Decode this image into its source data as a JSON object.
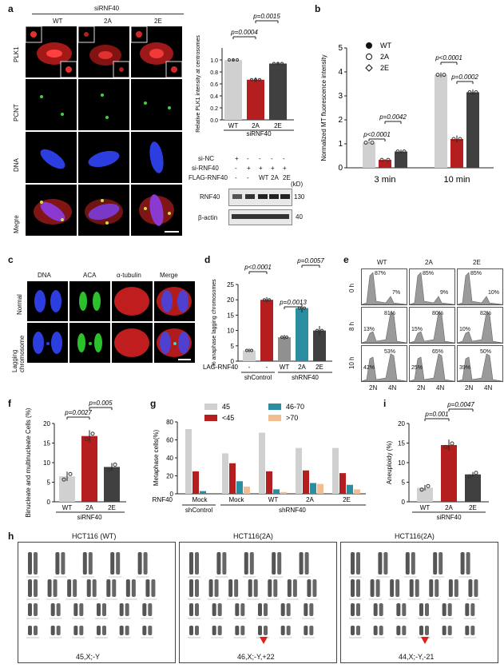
{
  "panels": {
    "a": {
      "label": "a",
      "header": "siRNF40",
      "columns": [
        "WT",
        "2A",
        "2E"
      ],
      "rows": [
        "PLK1",
        "PCNT",
        "DNA",
        "Megre"
      ],
      "chart_data": {
        "type": "bar",
        "categories": [
          "WT",
          "2A",
          "2E"
        ],
        "values": [
          1.0,
          0.67,
          0.94
        ],
        "errors": [
          0.01,
          0.04,
          0.02
        ],
        "colors": [
          "#d0d0d0",
          "#b41e1e",
          "#404040"
        ],
        "ylabel": "Relative PLK1 intensity at centrosomes",
        "ylim": [
          0,
          1.2
        ],
        "yticks": [
          "0.0",
          "0.2",
          "0.4",
          "0.6",
          "0.8",
          "1.0"
        ],
        "xgroup": "siRNF40",
        "pvalues": [
          "p=0.0004",
          "p=0.0015"
        ]
      },
      "blot": {
        "row_labels": [
          "si-NC",
          "si-RNF40",
          "FLAG-RNF40"
        ],
        "row_signs": [
          [
            "+",
            "-",
            "-",
            "-",
            "-"
          ],
          [
            "-",
            "+",
            "+",
            "+",
            "+"
          ],
          [
            "-",
            "-",
            "WT",
            "2A",
            "2E"
          ]
        ],
        "kd_label": "(kD)",
        "bands": [
          {
            "name": "RNF40",
            "kd": "130"
          },
          {
            "name": "β-actin",
            "kd": "40"
          }
        ]
      }
    },
    "b": {
      "label": "b",
      "chart_data": {
        "type": "bar",
        "categories": [
          "3 min",
          "10 min"
        ],
        "series": [
          {
            "name": "WT",
            "values": [
              1.05,
              3.88
            ],
            "errors": [
              0.02,
              0.1
            ]
          },
          {
            "name": "2A",
            "values": [
              0.33,
              1.2
            ],
            "errors": [
              0.03,
              0.15
            ]
          },
          {
            "name": "2E",
            "values": [
              0.68,
              3.15
            ],
            "errors": [
              0.08,
              0.12
            ]
          }
        ],
        "colors": [
          "#d0d0d0",
          "#b41e1e",
          "#404040"
        ],
        "ylabel": "Normalized MT fluorescence intensity",
        "ylim": [
          0,
          5
        ],
        "yticks": [
          "0",
          "1",
          "2",
          "3",
          "4",
          "5"
        ],
        "pvalues": [
          "p<0.0001",
          "p=0.0042",
          "p<0.0001",
          "p=0.0002"
        ]
      }
    },
    "c": {
      "label": "c",
      "columns": [
        "DNA",
        "ACA",
        "α-tubulin",
        "Merge"
      ],
      "rows": [
        "Normal",
        "Lagging chromosome"
      ]
    },
    "d": {
      "label": "d",
      "chart_data": {
        "type": "bar",
        "categories": [
          "-",
          "-",
          "WT",
          "2A",
          "2E"
        ],
        "values": [
          3.5,
          20.0,
          7.8,
          17.3,
          10.0
        ],
        "errors": [
          0.6,
          0.9,
          0.8,
          1.4,
          1.5
        ],
        "colors": [
          "#d0d0d0",
          "#b41e1e",
          "#909090",
          "#2a8da0",
          "#404040"
        ],
        "ylabel": "% anaphase lagging chromosomes",
        "ylim": [
          0,
          25
        ],
        "yticks": [
          "0",
          "5",
          "10",
          "15",
          "20",
          "25"
        ],
        "row_label": "FLAG-RNF40",
        "groups": [
          "shControl",
          "shRNF40"
        ],
        "pvalues": [
          "p<0.0001",
          "p=0.0013",
          "p=0.0057"
        ]
      }
    },
    "e": {
      "label": "e",
      "columns": [
        "WT",
        "2A",
        "2E"
      ],
      "rows": [
        "0 h",
        "8 h",
        "10 h"
      ],
      "percents": [
        [
          [
            "87%",
            "7%"
          ],
          [
            "85%",
            "9%"
          ],
          [
            "85%",
            "10%"
          ]
        ],
        [
          [
            "13%",
            "81%"
          ],
          [
            "15%",
            "80%"
          ],
          [
            "10%",
            "82%"
          ]
        ],
        [
          [
            "42%",
            "53%"
          ],
          [
            "25%",
            "65%"
          ],
          [
            "39%",
            "50%"
          ]
        ]
      ],
      "xlabels": [
        "2N",
        "4N"
      ]
    },
    "f": {
      "label": "f",
      "chart_data": {
        "type": "bar",
        "categories": [
          "WT",
          "2A",
          "2E"
        ],
        "values": [
          6.5,
          16.8,
          8.9
        ],
        "errors": [
          1.2,
          1.5,
          1.0
        ],
        "colors": [
          "#d0d0d0",
          "#b41e1e",
          "#404040"
        ],
        "ylabel": "Binucleate and multinucleate Cells (%)",
        "ylim": [
          0,
          20
        ],
        "yticks": [
          "0",
          "5",
          "10",
          "15",
          "20"
        ],
        "xgroup": "siRNF40",
        "pvalues": [
          "p=0.0027",
          "p=0.005"
        ]
      }
    },
    "g": {
      "label": "g",
      "chart_data": {
        "type": "bar",
        "categories": [
          "Mock",
          "Mock",
          "WT",
          "2A",
          "2E"
        ],
        "series": [
          {
            "name": "45",
            "values": [
              72,
              45,
              68,
              51,
              51
            ]
          },
          {
            "name": "<45",
            "values": [
              25,
              34,
              25,
              26,
              23
            ]
          },
          {
            "name": "46-70",
            "values": [
              3,
              14,
              5,
              12,
              10
            ]
          },
          {
            "name": ">70",
            "values": [
              0,
              8,
              2,
              11,
              5
            ]
          }
        ],
        "colors": [
          "#d0d0d0",
          "#b41e1e",
          "#2a8da0",
          "#f2bd8f"
        ],
        "ylabel": "Metaphase cells(%)",
        "ylim": [
          0,
          80
        ],
        "yticks": [
          "0",
          "20",
          "40",
          "60",
          "80"
        ],
        "row_label": "RNF40",
        "groups": [
          "shControl",
          "shRNF40"
        ]
      }
    },
    "i": {
      "label": "i",
      "chart_data": {
        "type": "bar",
        "categories": [
          "WT",
          "2A",
          "2E"
        ],
        "values": [
          3.6,
          14.5,
          7.0
        ],
        "errors": [
          0.7,
          1.4,
          0.6
        ],
        "colors": [
          "#d0d0d0",
          "#b41e1e",
          "#404040"
        ],
        "ylabel": "Aneuploidy (%)",
        "ylim": [
          0,
          20
        ],
        "yticks": [
          "0",
          "5",
          "10",
          "15",
          "20"
        ],
        "xgroup": "siRNF40",
        "pvalues": [
          "p=0.001",
          "p=0.0047"
        ]
      }
    },
    "h": {
      "label": "h",
      "karyotypes": [
        {
          "title": "HCT116 (WT)",
          "caption": "45,X;-Y"
        },
        {
          "title": "HCT116(2A)",
          "caption": "46,X;-Y,+22"
        },
        {
          "title": "HCT116(2A)",
          "caption": "44,X;-Y,-21"
        }
      ]
    }
  }
}
